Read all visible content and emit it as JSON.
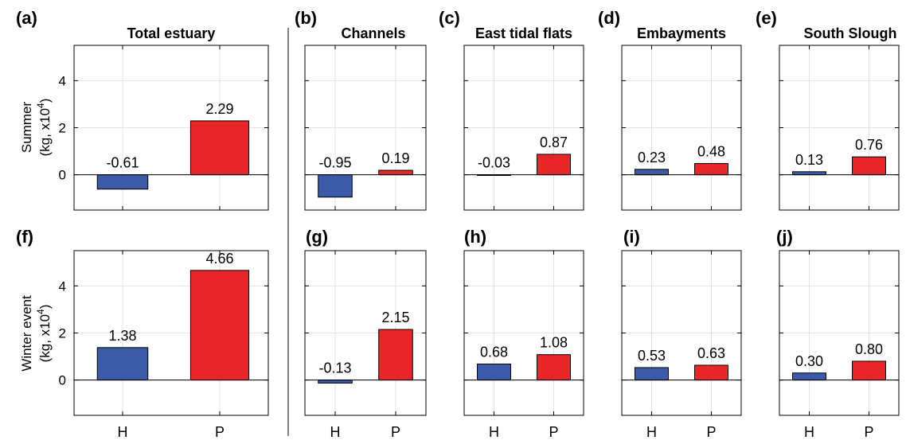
{
  "chart_data": [
    {
      "id": "a",
      "type": "bar",
      "letter": "(a)",
      "title": "Total estuary",
      "categories": [
        "H",
        "P"
      ],
      "values": [
        -0.61,
        2.29
      ],
      "labels": [
        "-0.61",
        "2.29"
      ],
      "ylim": [
        -1.5,
        5.5
      ],
      "yticks": [
        "0",
        "2",
        "4"
      ],
      "grid": true
    },
    {
      "id": "b",
      "type": "bar",
      "letter": "(b)",
      "title": "Channels",
      "categories": [
        "H",
        "P"
      ],
      "values": [
        -0.95,
        0.19
      ],
      "labels": [
        "-0.95",
        "0.19"
      ],
      "ylim": [
        -1.5,
        5.5
      ],
      "grid": true
    },
    {
      "id": "c",
      "type": "bar",
      "letter": "(c)",
      "title": "East tidal flats",
      "categories": [
        "H",
        "P"
      ],
      "values": [
        -0.03,
        0.87
      ],
      "labels": [
        "-0.03",
        "0.87"
      ],
      "ylim": [
        -1.5,
        5.5
      ],
      "grid": true
    },
    {
      "id": "d",
      "type": "bar",
      "letter": "(d)",
      "title": "Embayments",
      "categories": [
        "H",
        "P"
      ],
      "values": [
        0.23,
        0.48
      ],
      "labels": [
        "0.23",
        "0.48"
      ],
      "ylim": [
        -1.5,
        5.5
      ],
      "grid": true
    },
    {
      "id": "e",
      "type": "bar",
      "letter": "(e)",
      "title": "South Slough",
      "categories": [
        "H",
        "P"
      ],
      "values": [
        0.13,
        0.76
      ],
      "labels": [
        "0.13",
        "0.76"
      ],
      "ylim": [
        -1.5,
        5.5
      ],
      "grid": true
    },
    {
      "id": "f",
      "type": "bar",
      "letter": "(f)",
      "title": "",
      "categories": [
        "H",
        "P"
      ],
      "values": [
        1.38,
        4.66
      ],
      "labels": [
        "1.38",
        "4.66"
      ],
      "ylim": [
        -1.5,
        5.5
      ],
      "yticks": [
        "0",
        "2",
        "4"
      ],
      "grid": true
    },
    {
      "id": "g",
      "type": "bar",
      "letter": "(g)",
      "title": "",
      "categories": [
        "H",
        "P"
      ],
      "values": [
        -0.13,
        2.15
      ],
      "labels": [
        "-0.13",
        "2.15"
      ],
      "ylim": [
        -1.5,
        5.5
      ],
      "grid": true
    },
    {
      "id": "h",
      "type": "bar",
      "letter": "(h)",
      "title": "",
      "categories": [
        "H",
        "P"
      ],
      "values": [
        0.68,
        1.08
      ],
      "labels": [
        "0.68",
        "1.08"
      ],
      "ylim": [
        -1.5,
        5.5
      ],
      "grid": true
    },
    {
      "id": "i",
      "type": "bar",
      "letter": "(i)",
      "title": "",
      "categories": [
        "H",
        "P"
      ],
      "values": [
        0.53,
        0.63
      ],
      "labels": [
        "0.53",
        "0.63"
      ],
      "ylim": [
        -1.5,
        5.5
      ],
      "grid": true
    },
    {
      "id": "j",
      "type": "bar",
      "letter": "(j)",
      "title": "",
      "categories": [
        "H",
        "P"
      ],
      "values": [
        0.3,
        0.8
      ],
      "labels": [
        "0.30",
        "0.80"
      ],
      "ylim": [
        -1.5,
        5.5
      ],
      "grid": true
    }
  ],
  "row_labels": [
    {
      "line1": "Summer",
      "line2": "(kg, x10",
      "sup": "4",
      "close": ")"
    },
    {
      "line1": "Winter event",
      "line2": "(kg, x10",
      "sup": "4",
      "close": ")"
    }
  ],
  "colors": {
    "H": "#3d5aa8",
    "P": "#e8262a",
    "grid": "#e3e3e3",
    "axis": "#000000"
  }
}
